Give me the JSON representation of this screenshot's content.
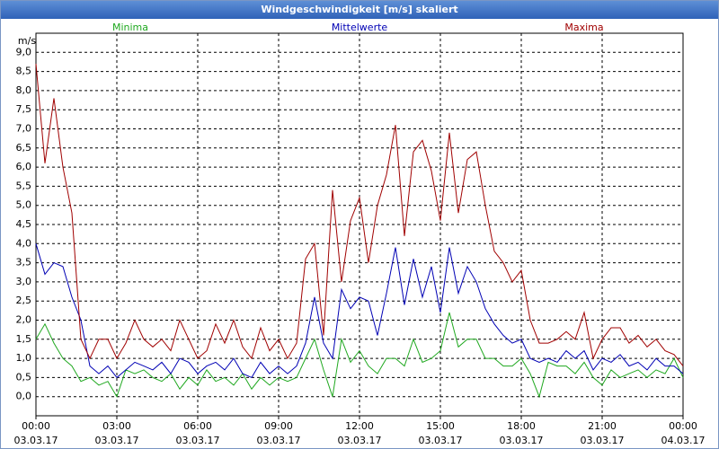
{
  "chart_data": {
    "type": "line",
    "title": "Windgeschwindigkeit [m/s] skaliert",
    "y_unit": "m/s",
    "x": [
      0,
      20,
      40,
      60,
      80,
      100,
      120,
      140,
      160,
      180,
      200,
      220,
      240,
      260,
      280,
      300,
      320,
      340,
      360,
      380,
      400,
      420,
      440,
      460,
      480,
      500,
      520,
      540,
      560,
      580,
      600,
      620,
      640,
      660,
      680,
      700,
      720,
      740,
      760,
      780,
      800,
      820,
      840,
      860,
      880,
      900,
      920,
      940,
      960,
      980,
      1000,
      1020,
      1040,
      1060,
      1080,
      1100,
      1120,
      1140,
      1160,
      1180,
      1200,
      1220,
      1240,
      1260,
      1280,
      1300,
      1320,
      1340,
      1360,
      1380,
      1400,
      1420,
      1440
    ],
    "xlim": [
      0,
      1440
    ],
    "xticks": [
      {
        "value": 0,
        "label": "00:00",
        "date": "03.03.17"
      },
      {
        "value": 180,
        "label": "03:00",
        "date": "03.03.17"
      },
      {
        "value": 360,
        "label": "06:00",
        "date": "03.03.17"
      },
      {
        "value": 540,
        "label": "09:00",
        "date": "03.03.17"
      },
      {
        "value": 720,
        "label": "12:00",
        "date": "03.03.17"
      },
      {
        "value": 900,
        "label": "15:00",
        "date": "03.03.17"
      },
      {
        "value": 1080,
        "label": "18:00",
        "date": "03.03.17"
      },
      {
        "value": 1260,
        "label": "21:00",
        "date": "03.03.17"
      },
      {
        "value": 1440,
        "label": "00:00",
        "date": "04.03.17"
      }
    ],
    "ylim": [
      -0.5,
      9.5
    ],
    "yticks": [
      {
        "value": 0,
        "label": "0,0"
      },
      {
        "value": 0.5,
        "label": "0,5"
      },
      {
        "value": 1,
        "label": "1,0"
      },
      {
        "value": 1.5,
        "label": "1,5"
      },
      {
        "value": 2,
        "label": "2,0"
      },
      {
        "value": 2.5,
        "label": "2,5"
      },
      {
        "value": 3,
        "label": "3,0"
      },
      {
        "value": 3.5,
        "label": "3,5"
      },
      {
        "value": 4,
        "label": "4,0"
      },
      {
        "value": 4.5,
        "label": "4,5"
      },
      {
        "value": 5,
        "label": "5,0"
      },
      {
        "value": 5.5,
        "label": "5,5"
      },
      {
        "value": 6,
        "label": "6,0"
      },
      {
        "value": 6.5,
        "label": "6,5"
      },
      {
        "value": 7,
        "label": "7,0"
      },
      {
        "value": 7.5,
        "label": "7,5"
      },
      {
        "value": 8,
        "label": "8,0"
      },
      {
        "value": 8.5,
        "label": "8,5"
      },
      {
        "value": 9,
        "label": "9,0"
      }
    ],
    "grid": true,
    "series": [
      {
        "name": "Minima",
        "color": "#1fa81f",
        "values": [
          1.5,
          1.9,
          1.4,
          1.0,
          0.8,
          0.4,
          0.5,
          0.3,
          0.4,
          0.0,
          0.7,
          0.6,
          0.7,
          0.5,
          0.4,
          0.6,
          0.2,
          0.5,
          0.3,
          0.7,
          0.4,
          0.5,
          0.3,
          0.6,
          0.2,
          0.5,
          0.3,
          0.5,
          0.4,
          0.5,
          1.0,
          1.5,
          0.7,
          0.0,
          1.5,
          0.9,
          1.2,
          0.8,
          0.6,
          1.0,
          1.0,
          0.8,
          1.5,
          0.9,
          1.0,
          1.2,
          2.2,
          1.3,
          1.5,
          1.5,
          1.0,
          1.0,
          0.8,
          0.8,
          1.0,
          0.6,
          0.0,
          0.9,
          0.8,
          0.8,
          0.6,
          0.9,
          0.5,
          0.3,
          0.7,
          0.5,
          0.6,
          0.7,
          0.5,
          0.7,
          0.6,
          1.0,
          0.5
        ]
      },
      {
        "name": "Mittelwerte",
        "color": "#0000b4",
        "values": [
          4.0,
          3.2,
          3.5,
          3.4,
          2.6,
          2.0,
          0.8,
          0.6,
          0.8,
          0.5,
          0.7,
          0.9,
          0.8,
          0.7,
          0.9,
          0.6,
          1.0,
          0.9,
          0.6,
          0.8,
          0.9,
          0.7,
          1.0,
          0.6,
          0.5,
          0.9,
          0.6,
          0.8,
          0.6,
          0.8,
          1.4,
          2.6,
          1.4,
          1.0,
          2.8,
          2.3,
          2.6,
          2.5,
          1.6,
          2.7,
          3.9,
          2.4,
          3.6,
          2.6,
          3.4,
          2.2,
          3.9,
          2.7,
          3.4,
          3.0,
          2.3,
          1.9,
          1.6,
          1.4,
          1.5,
          1.0,
          0.9,
          1.0,
          0.9,
          1.2,
          1.0,
          1.2,
          0.7,
          1.0,
          0.9,
          1.1,
          0.8,
          0.9,
          0.7,
          1.0,
          0.8,
          0.8,
          0.6
        ]
      },
      {
        "name": "Maxima",
        "color": "#a00000",
        "values": [
          8.7,
          6.1,
          7.8,
          6.0,
          4.8,
          1.5,
          1.0,
          1.5,
          1.5,
          1.0,
          1.4,
          2.0,
          1.5,
          1.3,
          1.5,
          1.2,
          2.0,
          1.5,
          1.0,
          1.2,
          1.9,
          1.4,
          2.0,
          1.3,
          1.0,
          1.8,
          1.2,
          1.5,
          1.0,
          1.4,
          3.6,
          4.0,
          1.6,
          5.4,
          3.0,
          4.6,
          5.2,
          3.5,
          5.0,
          5.8,
          7.1,
          4.2,
          6.4,
          6.7,
          5.9,
          4.6,
          6.9,
          4.8,
          6.2,
          6.4,
          5.0,
          3.8,
          3.5,
          3.0,
          3.3,
          2.0,
          1.4,
          1.4,
          1.5,
          1.7,
          1.5,
          2.2,
          1.0,
          1.5,
          1.8,
          1.8,
          1.4,
          1.6,
          1.3,
          1.5,
          1.2,
          1.1,
          0.8
        ]
      }
    ]
  }
}
